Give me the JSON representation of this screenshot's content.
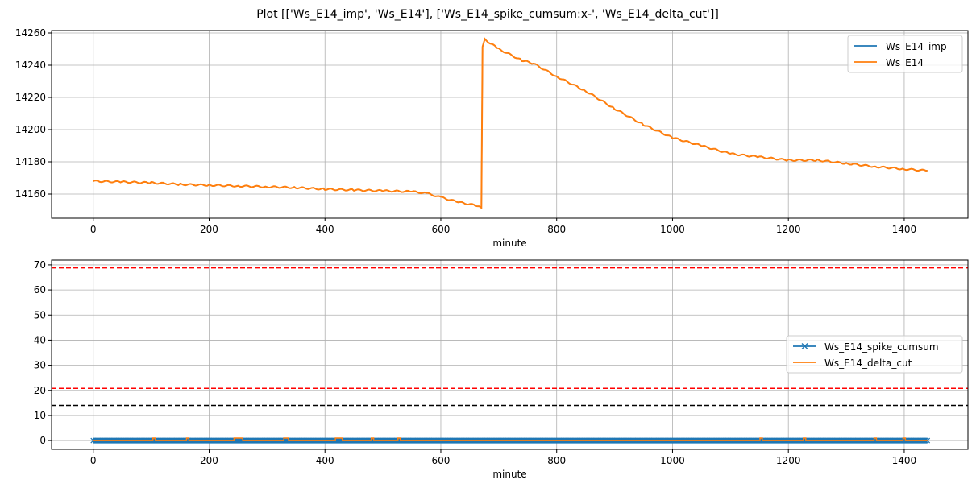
{
  "figure_title": "Plot [['Ws_E14_imp', 'Ws_E14'], ['Ws_E14_spike_cumsum:x-', 'Ws_E14_delta_cut']]",
  "colors": {
    "blue": "#1f77b4",
    "orange": "#ff7f0e",
    "red": "#ff0000",
    "black": "#000000",
    "grid": "#b0b0b0"
  },
  "chart_data": [
    {
      "type": "line",
      "xlabel": "minute",
      "ylabel": "",
      "xlim": [
        -72,
        1510
      ],
      "ylim": [
        14145,
        14261.5
      ],
      "xticks": [
        0,
        200,
        400,
        600,
        800,
        1000,
        1200,
        1400
      ],
      "yticks": [
        14160,
        14180,
        14200,
        14220,
        14240,
        14260
      ],
      "grid": true,
      "legend": "upper right",
      "x": [
        0,
        50,
        100,
        150,
        200,
        250,
        300,
        350,
        400,
        450,
        500,
        550,
        575,
        600,
        630,
        660,
        670,
        672,
        676,
        700,
        740,
        760,
        800,
        850,
        900,
        950,
        1000,
        1050,
        1100,
        1150,
        1200,
        1250,
        1300,
        1350,
        1400,
        1440
      ],
      "series": [
        {
          "name": "Ws_E14_imp",
          "color": "#1f77b4",
          "values": [
            14168,
            14167.5,
            14167,
            14166,
            14165.5,
            14165,
            14164.5,
            14164,
            14163,
            14162.5,
            14162,
            14161.5,
            14160.5,
            14158,
            14155,
            14153,
            14151.5,
            14252,
            14256,
            14250,
            14243,
            14241,
            14233,
            14224,
            14213,
            14203,
            14195,
            14190,
            14185,
            14183,
            14181,
            14181,
            14179,
            14177,
            14175.5,
            14174.5
          ]
        },
        {
          "name": "Ws_E14",
          "color": "#ff7f0e",
          "values": [
            14168,
            14167.5,
            14167,
            14166,
            14165.5,
            14165,
            14164.5,
            14164,
            14163,
            14162.5,
            14162,
            14161.5,
            14160.5,
            14158,
            14155,
            14153,
            14151.5,
            14252,
            14256,
            14250,
            14243,
            14241,
            14233,
            14224,
            14213,
            14203,
            14195,
            14190,
            14185,
            14183,
            14181,
            14181,
            14179,
            14177,
            14175.5,
            14174.5
          ]
        }
      ]
    },
    {
      "type": "line",
      "xlabel": "minute",
      "ylabel": "",
      "xlim": [
        -72,
        1510
      ],
      "ylim": [
        -3.5,
        71.9
      ],
      "xticks": [
        0,
        200,
        400,
        600,
        800,
        1000,
        1200,
        1400
      ],
      "yticks": [
        0,
        10,
        20,
        30,
        40,
        50,
        60,
        70
      ],
      "grid": true,
      "legend": "center right",
      "series": [
        {
          "name": "Ws_E14_spike_cumsum",
          "color": "#1f77b4",
          "marker": "x",
          "x_range": [
            0,
            1440
          ],
          "value": 0
        },
        {
          "name": "Ws_E14_delta_cut",
          "color": "#ff7f0e",
          "x_range": [
            0,
            1440
          ],
          "baseline": 0,
          "pulses": [
            [
              103,
              107
            ],
            [
              161,
              165
            ],
            [
              243,
              258
            ],
            [
              329,
              337
            ],
            [
              418,
              430
            ],
            [
              480,
              484
            ],
            [
              526,
              530
            ],
            [
              1151,
              1155
            ],
            [
              1226,
              1230
            ],
            [
              1348,
              1352
            ],
            [
              1398,
              1402
            ]
          ],
          "pulse_value": 1
        }
      ],
      "hlines": [
        {
          "y": 68.8,
          "color": "#ff0000",
          "style": "dashed"
        },
        {
          "y": 20.8,
          "color": "#ff0000",
          "style": "dashed"
        },
        {
          "y": 14,
          "color": "#000000",
          "style": "dashed"
        }
      ]
    }
  ]
}
